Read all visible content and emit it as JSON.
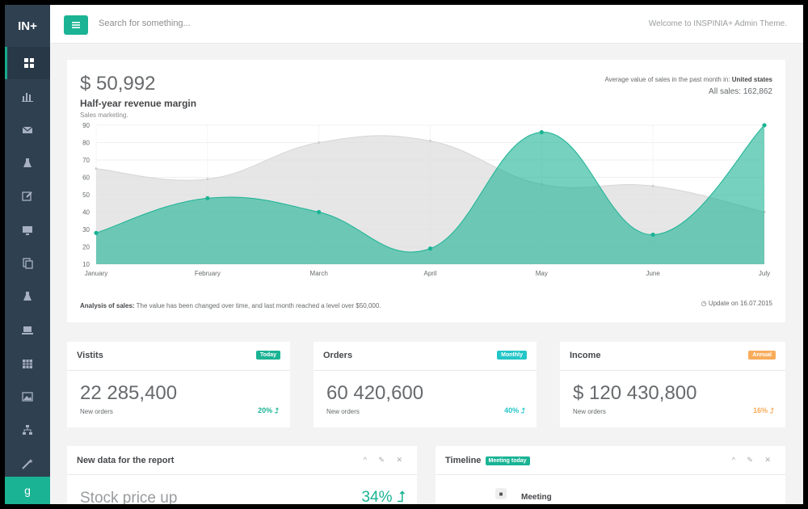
{
  "app": {
    "logo": "IN+"
  },
  "sidebar": {
    "items": [
      {
        "icon": "dashboard-icon",
        "active": true
      },
      {
        "icon": "bar-chart-icon"
      },
      {
        "icon": "envelope-icon"
      },
      {
        "icon": "flask-icon"
      },
      {
        "icon": "edit-icon"
      },
      {
        "icon": "desktop-icon"
      },
      {
        "icon": "files-icon"
      },
      {
        "icon": "flask-icon"
      },
      {
        "icon": "laptop-icon"
      },
      {
        "icon": "table-icon"
      },
      {
        "icon": "picture-icon"
      },
      {
        "icon": "sitemap-icon"
      },
      {
        "icon": "magic-icon"
      }
    ],
    "bottom_icon": "google-icon",
    "bottom_glyph": "g"
  },
  "topbar": {
    "search_placeholder": "Search for something...",
    "welcome": "Welcome to INSPINIA+ Admin Theme."
  },
  "revenue": {
    "amount": "$ 50,992",
    "title": "Half-year revenue margin",
    "subtitle": "Sales marketing.",
    "avg_prefix": "Average value of sales in the past month in:",
    "avg_region": "United states",
    "all_sales": "All sales: 162,862",
    "analysis_label": "Analysis of sales:",
    "analysis_text": "The value has been changed over time, and last month reached a level over $50,000.",
    "update": "Update on 16.07.2015"
  },
  "chart_data": {
    "type": "area",
    "x": [
      "January",
      "February",
      "March",
      "April",
      "May",
      "June",
      "July"
    ],
    "yticks": [
      10,
      20,
      30,
      40,
      50,
      60,
      70,
      80,
      90
    ],
    "ylim": [
      10,
      90
    ],
    "series": [
      {
        "values": [
          65,
          59,
          80,
          81,
          56,
          55,
          40
        ],
        "color": "#dedede"
      },
      {
        "values": [
          28,
          48,
          40,
          19,
          86,
          27,
          90
        ],
        "color": "#1ab394"
      }
    ]
  },
  "stats": [
    {
      "title": "Vistits",
      "badge": "Today",
      "badge_color": "#1ab394",
      "value": "22 285,400",
      "label": "New orders",
      "pct": "20% ⮥",
      "pct_color": "#1ab394"
    },
    {
      "title": "Orders",
      "badge": "Monthly",
      "badge_color": "#23c6c8",
      "value": "60 420,600",
      "label": "New orders",
      "pct": "40% ⮥",
      "pct_color": "#23c6c8"
    },
    {
      "title": "Income",
      "badge": "Annual",
      "badge_color": "#f8ac59",
      "value": "$ 120 430,800",
      "label": "New orders",
      "pct": "16% ⮥",
      "pct_color": "#f8ac59"
    }
  ],
  "report": {
    "title": "New data for the report",
    "tools": "^ ✎ ✕",
    "stock_label": "Stock price up",
    "stock_pct": "34% ⮥"
  },
  "timeline": {
    "title": "Timeline",
    "badge": "Meeting today",
    "tools": "^ ✎ ✕",
    "item": "Meeting"
  }
}
